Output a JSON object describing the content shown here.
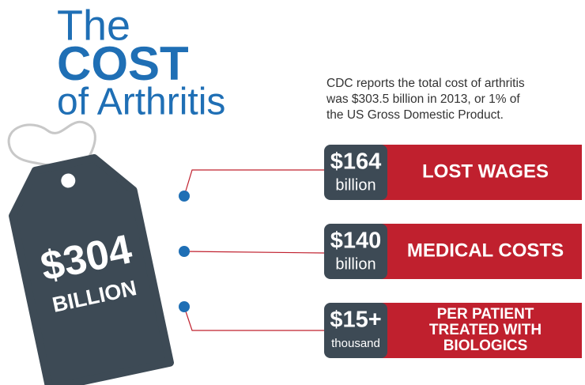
{
  "title": {
    "line1": "The",
    "line2": "COST",
    "line3": "of Arthritis"
  },
  "description": [
    "CDC reports the total cost of arthritis",
    "was $303.5 billion in 2013, or 1% of",
    "the US Gross Domestic Product."
  ],
  "tag": {
    "amount": "$304",
    "unit": "BILLION"
  },
  "items": [
    {
      "amount": "$164",
      "unit": "billion",
      "label": [
        "LOST WAGES"
      ]
    },
    {
      "amount": "$140",
      "unit": "billion",
      "label": [
        "MEDICAL COSTS"
      ]
    },
    {
      "amount": "$15+",
      "unit": "thousand",
      "label": [
        "PER PATIENT",
        "TREATED WITH",
        "BIOLOGICS"
      ]
    }
  ]
}
